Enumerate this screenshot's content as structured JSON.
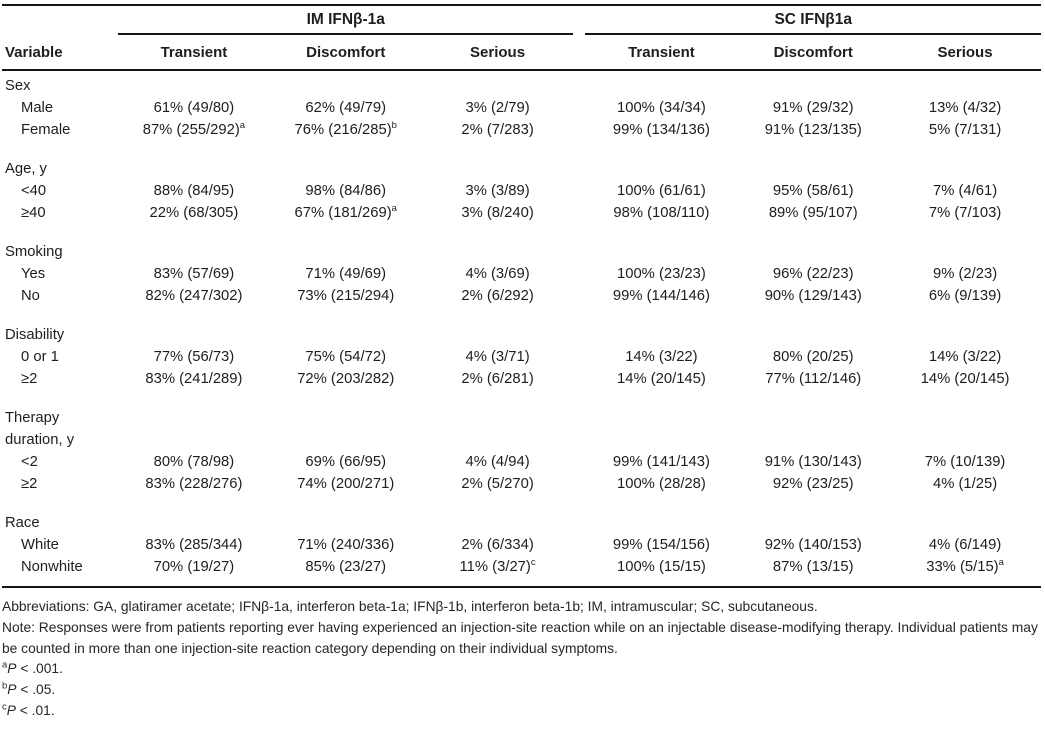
{
  "header": {
    "variable": "Variable",
    "groups": [
      {
        "title": "IM IFNβ-1a",
        "cols": [
          "Transient",
          "Discomfort",
          "Serious"
        ]
      },
      {
        "title": "SC IFNβ1a",
        "cols": [
          "Transient",
          "Discomfort",
          "Serious"
        ]
      }
    ]
  },
  "sections": [
    {
      "label": "Sex",
      "rows": [
        {
          "label": "Male",
          "values": [
            "61% (49/80)",
            "62% (49/79)",
            "3% (2/79)",
            "100% (34/34)",
            "91% (29/32)",
            "13% (4/32)"
          ],
          "sups": {}
        },
        {
          "label": "Female",
          "values": [
            "87% (255/292)",
            "76% (216/285)",
            "2% (7/283)",
            "99% (134/136)",
            "91% (123/135)",
            "5% (7/131)"
          ],
          "sups": {
            "0": "a",
            "1": "b"
          }
        }
      ]
    },
    {
      "label": "Age, y",
      "rows": [
        {
          "label": "<40",
          "values": [
            "88% (84/95)",
            "98% (84/86)",
            "3% (3/89)",
            "100% (61/61)",
            "95% (58/61)",
            "7% (4/61)"
          ],
          "sups": {}
        },
        {
          "label": "≥40",
          "values": [
            "22% (68/305)",
            "67% (181/269)",
            "3% (8/240)",
            "98% (108/110)",
            "89% (95/107)",
            "7% (7/103)"
          ],
          "sups": {
            "1": "a"
          }
        }
      ]
    },
    {
      "label": "Smoking",
      "rows": [
        {
          "label": "Yes",
          "values": [
            "83% (57/69)",
            "71% (49/69)",
            "4% (3/69)",
            "100% (23/23)",
            "96% (22/23)",
            "9% (2/23)"
          ],
          "sups": {}
        },
        {
          "label": "No",
          "values": [
            "82% (247/302)",
            "73% (215/294)",
            "2% (6/292)",
            "99% (144/146)",
            "90% (129/143)",
            "6% (9/139)"
          ],
          "sups": {}
        }
      ]
    },
    {
      "label": "Disability",
      "rows": [
        {
          "label": "0 or 1",
          "values": [
            "77% (56/73)",
            "75% (54/72)",
            "4% (3/71)",
            "14% (3/22)",
            "80% (20/25)",
            "14% (3/22)"
          ],
          "sups": {}
        },
        {
          "label": "≥2",
          "values": [
            "83% (241/289)",
            "72% (203/282)",
            "2% (6/281)",
            "14% (20/145)",
            "77% (112/146)",
            "14% (20/145)"
          ],
          "sups": {}
        }
      ]
    },
    {
      "label": "Therapy duration, y",
      "rows": [
        {
          "label": "<2",
          "values": [
            "80% (78/98)",
            "69% (66/95)",
            "4% (4/94)",
            "99% (141/143)",
            "91% (130/143)",
            "7% (10/139)"
          ],
          "sups": {}
        },
        {
          "label": "≥2",
          "values": [
            "83% (228/276)",
            "74% (200/271)",
            "2% (5/270)",
            "100% (28/28)",
            "92% (23/25)",
            "4% (1/25)"
          ],
          "sups": {}
        }
      ]
    },
    {
      "label": "Race",
      "rows": [
        {
          "label": "White",
          "values": [
            "83% (285/344)",
            "71% (240/336)",
            "2% (6/334)",
            "99% (154/156)",
            "92% (140/153)",
            "4% (6/149)"
          ],
          "sups": {}
        },
        {
          "label": "Nonwhite",
          "values": [
            "70% (19/27)",
            "85% (23/27)",
            "11% (3/27)",
            "100% (15/15)",
            "87% (13/15)",
            "33% (5/15)"
          ],
          "sups": {
            "2": "c",
            "5": "a"
          }
        }
      ]
    }
  ],
  "notes": {
    "abbreviations": "Abbreviations: GA, glatiramer acetate; IFNβ-1a, interferon beta-1a; IFNβ-1b, interferon beta-1b; IM, intramuscular; SC, subcutaneous.",
    "note": "Note: Responses were from patients reporting ever having experienced an injection-site reaction while on an injectable disease-modifying therapy. Individual patients may be counted in more than one injection-site reaction category depending on their individual symptoms.",
    "pvalues": [
      {
        "marker": "a",
        "label": "P",
        "text": " < .001."
      },
      {
        "marker": "b",
        "label": "P",
        "text": " < .05."
      },
      {
        "marker": "c",
        "label": "P",
        "text": " < .01."
      }
    ]
  }
}
